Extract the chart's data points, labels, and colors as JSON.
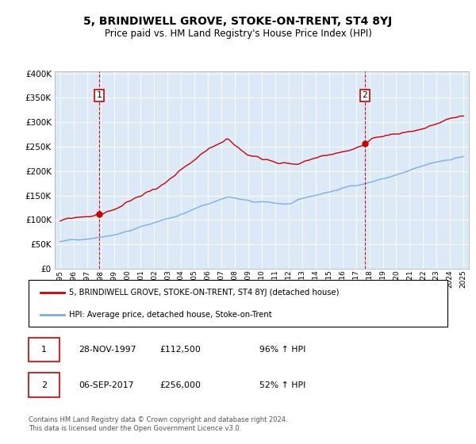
{
  "title": "5, BRINDIWELL GROVE, STOKE-ON-TRENT, ST4 8YJ",
  "subtitle": "Price paid vs. HM Land Registry's House Price Index (HPI)",
  "bg_color": "#dce9f7",
  "hpi_color": "#7ab0e0",
  "price_color": "#cc0000",
  "sale1_date": "28-NOV-1997",
  "sale1_price": 112500,
  "sale1_year": 1997.9,
  "sale1_pct": "96%",
  "sale2_date": "06-SEP-2017",
  "sale2_price": 256000,
  "sale2_year": 2017.7,
  "sale2_pct": "52%",
  "legend_label1": "5, BRINDIWELL GROVE, STOKE-ON-TRENT, ST4 8YJ (detached house)",
  "legend_label2": "HPI: Average price, detached house, Stoke-on-Trent",
  "footer": "Contains HM Land Registry data © Crown copyright and database right 2024.\nThis data is licensed under the Open Government Licence v3.0.",
  "yticks": [
    0,
    50000,
    100000,
    150000,
    200000,
    250000,
    300000,
    350000,
    400000
  ],
  "years": [
    "1995",
    "1996",
    "1997",
    "1998",
    "1999",
    "2000",
    "2001",
    "2002",
    "2003",
    "2004",
    "2005",
    "2006",
    "2007",
    "2008",
    "2009",
    "2010",
    "2011",
    "2012",
    "2013",
    "2014",
    "2015",
    "2016",
    "2017",
    "2018",
    "2019",
    "2020",
    "2021",
    "2022",
    "2023",
    "2024",
    "2025"
  ]
}
